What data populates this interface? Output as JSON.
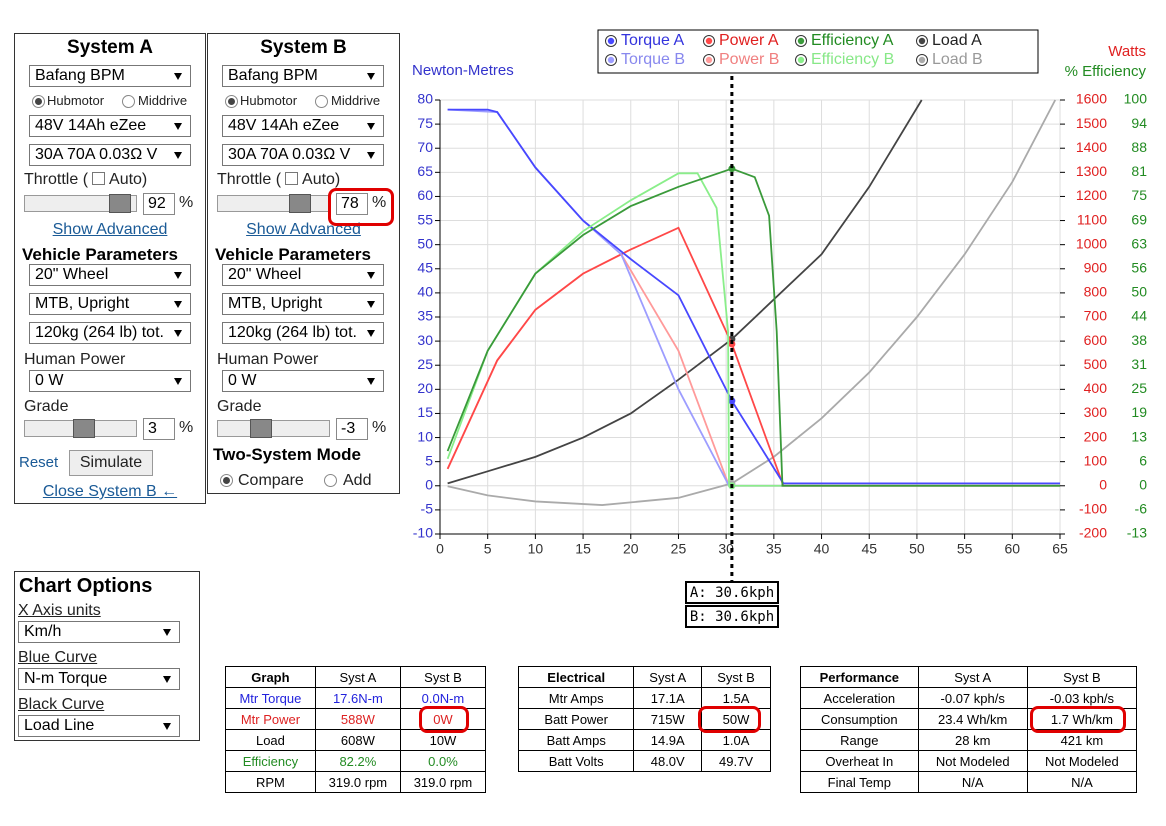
{
  "panels": [
    {
      "title": "System A",
      "motor": "Bafang BPM",
      "hub": "Hubmotor",
      "mid": "Middrive",
      "battery": "48V 14Ah eZee",
      "controller": "30A 70A 0.03Ω V",
      "throttle_label": "Throttle (",
      "auto_label": "Auto)",
      "throttle": 92,
      "pct": "%",
      "show_advanced": "Show Advanced",
      "vehicle": "Vehicle Parameters",
      "wheel": "20\"  Wheel",
      "frame": "MTB, Upright",
      "mass": "120kg (264 lb) tot.",
      "human_label": "Human Power",
      "human": "0 W",
      "grade_label": "Grade",
      "grade": 3,
      "reset": "Reset",
      "simulate": "Simulate",
      "close": "Close System B ←"
    },
    {
      "title": "System B",
      "motor": "Bafang BPM",
      "hub": "Hubmotor",
      "mid": "Middrive",
      "battery": "48V 14Ah eZee",
      "controller": "30A 70A 0.03Ω V",
      "throttle_label": "Throttle (",
      "auto_label": "Auto)",
      "throttle": 78,
      "pct": "%",
      "show_advanced": "Show Advanced",
      "vehicle": "Vehicle Parameters",
      "wheel": "20\"  Wheel",
      "frame": "MTB, Upright",
      "mass": "120kg (264 lb) tot.",
      "human_label": "Human Power",
      "human": "0 W",
      "grade_label": "Grade",
      "grade": -3,
      "mode_title": "Two-System Mode",
      "compare": "Compare",
      "add": "Add"
    }
  ],
  "chart_options": {
    "title": "Chart Options",
    "x_units_label": "X Axis units",
    "x_units": "Km/h",
    "blue_label": "Blue Curve",
    "blue": "N-m Torque",
    "black_label": "Black Curve",
    "black": "Load Line"
  },
  "chart_data": {
    "type": "line",
    "y_label": "Newton-Metres",
    "y2_label": "Watts",
    "y3_label": "% Efficiency",
    "xlim": [
      0,
      65
    ],
    "xticks": [
      0,
      5,
      10,
      15,
      20,
      25,
      30,
      35,
      40,
      45,
      50,
      55,
      60,
      65
    ],
    "ylim": [
      -10,
      80
    ],
    "yticks": [
      -10,
      -5,
      0,
      5,
      10,
      15,
      20,
      25,
      30,
      35,
      40,
      45,
      50,
      55,
      60,
      65,
      70,
      75,
      80
    ],
    "y2lim": [
      -200,
      1600
    ],
    "y2ticks": [
      -200,
      -100,
      0,
      100,
      200,
      300,
      400,
      500,
      600,
      700,
      800,
      900,
      1000,
      1100,
      1200,
      1300,
      1400,
      1500,
      1600
    ],
    "y3lim": [
      -12.5,
      100
    ],
    "y3ticks": [
      {
        "value": -12.5,
        "label": "-13"
      },
      {
        "value": -6.25,
        "label": "-6"
      },
      0,
      {
        "value": 6.25,
        "label": "6"
      },
      {
        "value": 12.5,
        "label": "13"
      },
      {
        "value": 18.75,
        "label": "19"
      },
      25,
      {
        "value": 31.25,
        "label": "31"
      },
      {
        "value": 37.5,
        "label": "38"
      },
      {
        "value": 43.75,
        "label": "44"
      },
      50,
      {
        "value": 56.25,
        "label": "56"
      },
      {
        "value": 62.5,
        "label": "63"
      },
      {
        "value": 68.75,
        "label": "69"
      },
      75,
      {
        "value": 81.25,
        "label": "81"
      },
      {
        "value": 87.5,
        "label": "88"
      },
      {
        "value": 93.75,
        "label": "94"
      },
      100
    ],
    "grid": true,
    "cursor_x": 30.6,
    "cursor_labels": [
      "A: 30.6kph",
      "B: 30.6kph"
    ],
    "series": [
      {
        "name": "Torque A",
        "color": "#4848ff",
        "axis": "y",
        "x": [
          0.8,
          5,
          6,
          10,
          15,
          20,
          25,
          30.6,
          36,
          65
        ],
        "values": [
          78,
          78,
          77.5,
          66,
          55,
          47,
          39.5,
          17.6,
          0.5,
          0.5
        ]
      },
      {
        "name": "Torque B",
        "color": "#9d9dff",
        "axis": "y",
        "x": [
          0.8,
          6,
          10,
          15,
          19,
          25,
          30.3,
          30.6,
          65
        ],
        "values": [
          78,
          77.5,
          66,
          55,
          48,
          20,
          0,
          0,
          0
        ]
      },
      {
        "name": "Power A",
        "color": "#ff4848",
        "axis": "y2",
        "x": [
          0.8,
          6,
          10,
          15,
          20,
          25,
          30.6,
          36,
          65
        ],
        "values": [
          70,
          520,
          730,
          880,
          980,
          1070,
          588,
          0,
          0
        ]
      },
      {
        "name": "Power B",
        "color": "#ff9a9a",
        "axis": "y2",
        "x": [
          0.8,
          6,
          10,
          15,
          19,
          25,
          30.3,
          30.6,
          65
        ],
        "values": [
          70,
          520,
          730,
          880,
          960,
          560,
          0,
          0,
          0
        ]
      },
      {
        "name": "Efficiency A",
        "color": "#3a9a3a",
        "axis": "y3",
        "x": [
          0.8,
          5,
          10,
          15,
          20,
          25,
          30.6,
          33,
          34.5,
          35.3,
          35.9,
          65
        ],
        "values": [
          9,
          35,
          55,
          65,
          72.5,
          77.5,
          82.2,
          80,
          70,
          40,
          0,
          0
        ]
      },
      {
        "name": "Efficiency B",
        "color": "#8aee8a",
        "axis": "y3",
        "x": [
          0.8,
          5,
          10,
          15,
          20,
          25,
          27,
          29,
          30.2,
          30.3,
          30.6,
          65
        ],
        "values": [
          7,
          35,
          55,
          66,
          74,
          81,
          81,
          72,
          40,
          0,
          0,
          0
        ]
      },
      {
        "name": "Load A",
        "color": "#444444",
        "axis": "y2",
        "x": [
          0.8,
          5,
          10,
          15,
          20,
          25,
          30.6,
          40,
          45,
          50.5
        ],
        "values": [
          10,
          60,
          120,
          200,
          300,
          440,
          608,
          960,
          1240,
          1600
        ]
      },
      {
        "name": "Load B",
        "color": "#aaaaaa",
        "axis": "y2",
        "x": [
          0.8,
          5,
          10,
          17,
          25,
          30.6,
          35,
          40,
          45,
          50,
          55,
          60,
          64.5
        ],
        "values": [
          -2,
          -40,
          -65,
          -80,
          -50,
          10,
          120,
          280,
          470,
          700,
          960,
          1260,
          1600
        ]
      }
    ]
  },
  "tables": [
    {
      "header": [
        "Graph",
        "Syst A",
        "Syst B"
      ],
      "row_colors": [
        "#2222dd",
        "#dd2222",
        "#000000",
        "#228b22",
        "#000000"
      ],
      "rows": [
        [
          "Mtr Torque",
          "17.6N-m",
          "0.0N-m"
        ],
        [
          "Mtr Power",
          "588W",
          "0W"
        ],
        [
          "Load",
          "608W",
          "10W"
        ],
        [
          "Efficiency",
          "82.2%",
          "0.0%"
        ],
        [
          "RPM",
          "319.0 rpm",
          "319.0 rpm"
        ]
      ]
    },
    {
      "header": [
        "Electrical",
        "Syst A",
        "Syst B"
      ],
      "rows": [
        [
          "Mtr Amps",
          "17.1A",
          "1.5A"
        ],
        [
          "Batt Power",
          "715W",
          "50W"
        ],
        [
          "Batt Amps",
          "14.9A",
          "1.0A"
        ],
        [
          "Batt Volts",
          "48.0V",
          "49.7V"
        ]
      ]
    },
    {
      "header": [
        "Performance",
        "Syst A",
        "Syst B"
      ],
      "rows": [
        [
          "Acceleration",
          "-0.07 kph/s",
          "-0.03 kph/s"
        ],
        [
          "Consumption",
          "23.4 Wh/km",
          "1.7 Wh/km"
        ],
        [
          "Range",
          "28 km",
          "421 km"
        ],
        [
          "Overheat In",
          "Not Modeled",
          "Not Modeled"
        ],
        [
          "Final Temp",
          "N/A",
          "N/A"
        ]
      ]
    }
  ]
}
